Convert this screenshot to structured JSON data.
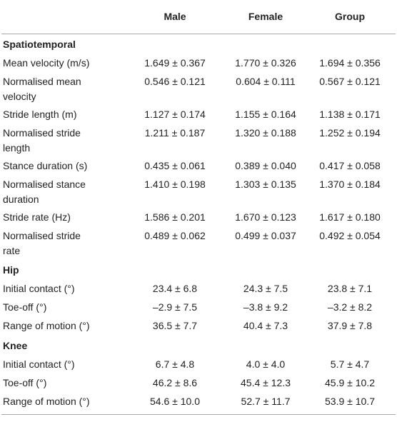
{
  "table": {
    "columns": [
      "Male",
      "Female",
      "Group"
    ],
    "sections": [
      {
        "title": "Spatiotemporal",
        "rows": [
          {
            "label": "Mean velocity (m/s)",
            "values": [
              "1.649 ± 0.367",
              "1.770 ± 0.326",
              "1.694 ± 0.356"
            ]
          },
          {
            "label": "Normalised mean velocity",
            "values": [
              "0.546 ± 0.121",
              "0.604 ± 0.111",
              "0.567 ± 0.121"
            ]
          },
          {
            "label": "Stride length (m)",
            "values": [
              "1.127 ± 0.174",
              "1.155 ± 0.164",
              "1.138 ± 0.171"
            ]
          },
          {
            "label": "Normalised stride length",
            "values": [
              "1.211 ± 0.187",
              "1.320 ± 0.188",
              "1.252 ± 0.194"
            ]
          },
          {
            "label": "Stance duration (s)",
            "values": [
              "0.435 ± 0.061",
              "0.389 ± 0.040",
              "0.417 ± 0.058"
            ]
          },
          {
            "label": "Normalised stance duration",
            "values": [
              "1.410 ± 0.198",
              "1.303 ± 0.135",
              "1.370 ± 0.184"
            ]
          },
          {
            "label": "Stride rate (Hz)",
            "values": [
              "1.586 ± 0.201",
              "1.670 ± 0.123",
              "1.617 ± 0.180"
            ]
          },
          {
            "label": "Normalised stride rate",
            "values": [
              "0.489 ± 0.062",
              "0.499 ± 0.037",
              "0.492 ± 0.054"
            ]
          }
        ]
      },
      {
        "title": "Hip",
        "rows": [
          {
            "label": "Initial contact (°)",
            "values": [
              "23.4 ± 6.8",
              "24.3 ± 7.5",
              "23.8 ± 7.1"
            ]
          },
          {
            "label": "Toe-off (°)",
            "values": [
              "–2.9 ± 7.5",
              "–3.8 ± 9.2",
              "–3.2 ± 8.2"
            ]
          },
          {
            "label": "Range of motion (°)",
            "values": [
              "36.5 ± 7.7",
              "40.4 ± 7.3",
              "37.9 ± 7.8"
            ]
          }
        ]
      },
      {
        "title": "Knee",
        "rows": [
          {
            "label": "Initial contact (°)",
            "values": [
              "6.7 ± 4.8",
              "4.0 ± 4.0",
              "5.7 ± 4.7"
            ]
          },
          {
            "label": "Toe-off (°)",
            "values": [
              "46.2 ± 8.6",
              "45.4 ± 12.3",
              "45.9 ± 10.2"
            ]
          },
          {
            "label": "Range of motion (°)",
            "values": [
              "54.6 ± 10.0",
              "52.7 ± 11.7",
              "53.9 ± 10.7"
            ]
          }
        ]
      }
    ]
  }
}
